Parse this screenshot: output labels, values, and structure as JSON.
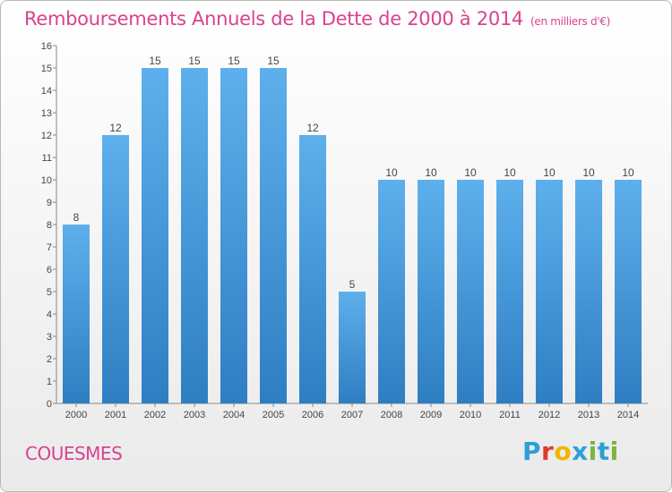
{
  "header": {
    "title": "Remboursements Annuels de la Dette de 2000 à 2014",
    "unit": "(en milliers d'€)"
  },
  "footer": {
    "commune": "COUESMES",
    "brand": {
      "letters": [
        "P",
        "r",
        "o",
        "x",
        "i",
        "t",
        "i"
      ],
      "colors": [
        "#2e9fd8",
        "#e03a2f",
        "#f4b400",
        "#2e9fd8",
        "#7cb342",
        "#2e9fd8",
        "#7cb342"
      ]
    }
  },
  "colors": {
    "title": "#d9428e",
    "bar_light": "#5eb0ec",
    "bar_dark": "#2e7ec2"
  },
  "chart_data": {
    "type": "bar",
    "title": "Remboursements Annuels de la Dette de 2000 à 2014",
    "unit": "(en milliers d'€)",
    "categories": [
      "2000",
      "2001",
      "2002",
      "2003",
      "2004",
      "2005",
      "2006",
      "2007",
      "2008",
      "2009",
      "2010",
      "2011",
      "2012",
      "2013",
      "2014"
    ],
    "values": [
      8,
      12,
      15,
      15,
      15,
      15,
      12,
      5,
      10,
      10,
      10,
      10,
      10,
      10,
      10
    ],
    "ylim": [
      0,
      16
    ],
    "yticks": [
      0,
      1,
      2,
      3,
      4,
      5,
      6,
      7,
      8,
      9,
      10,
      11,
      12,
      13,
      14,
      15,
      16
    ],
    "grid": false,
    "legend": "none"
  }
}
